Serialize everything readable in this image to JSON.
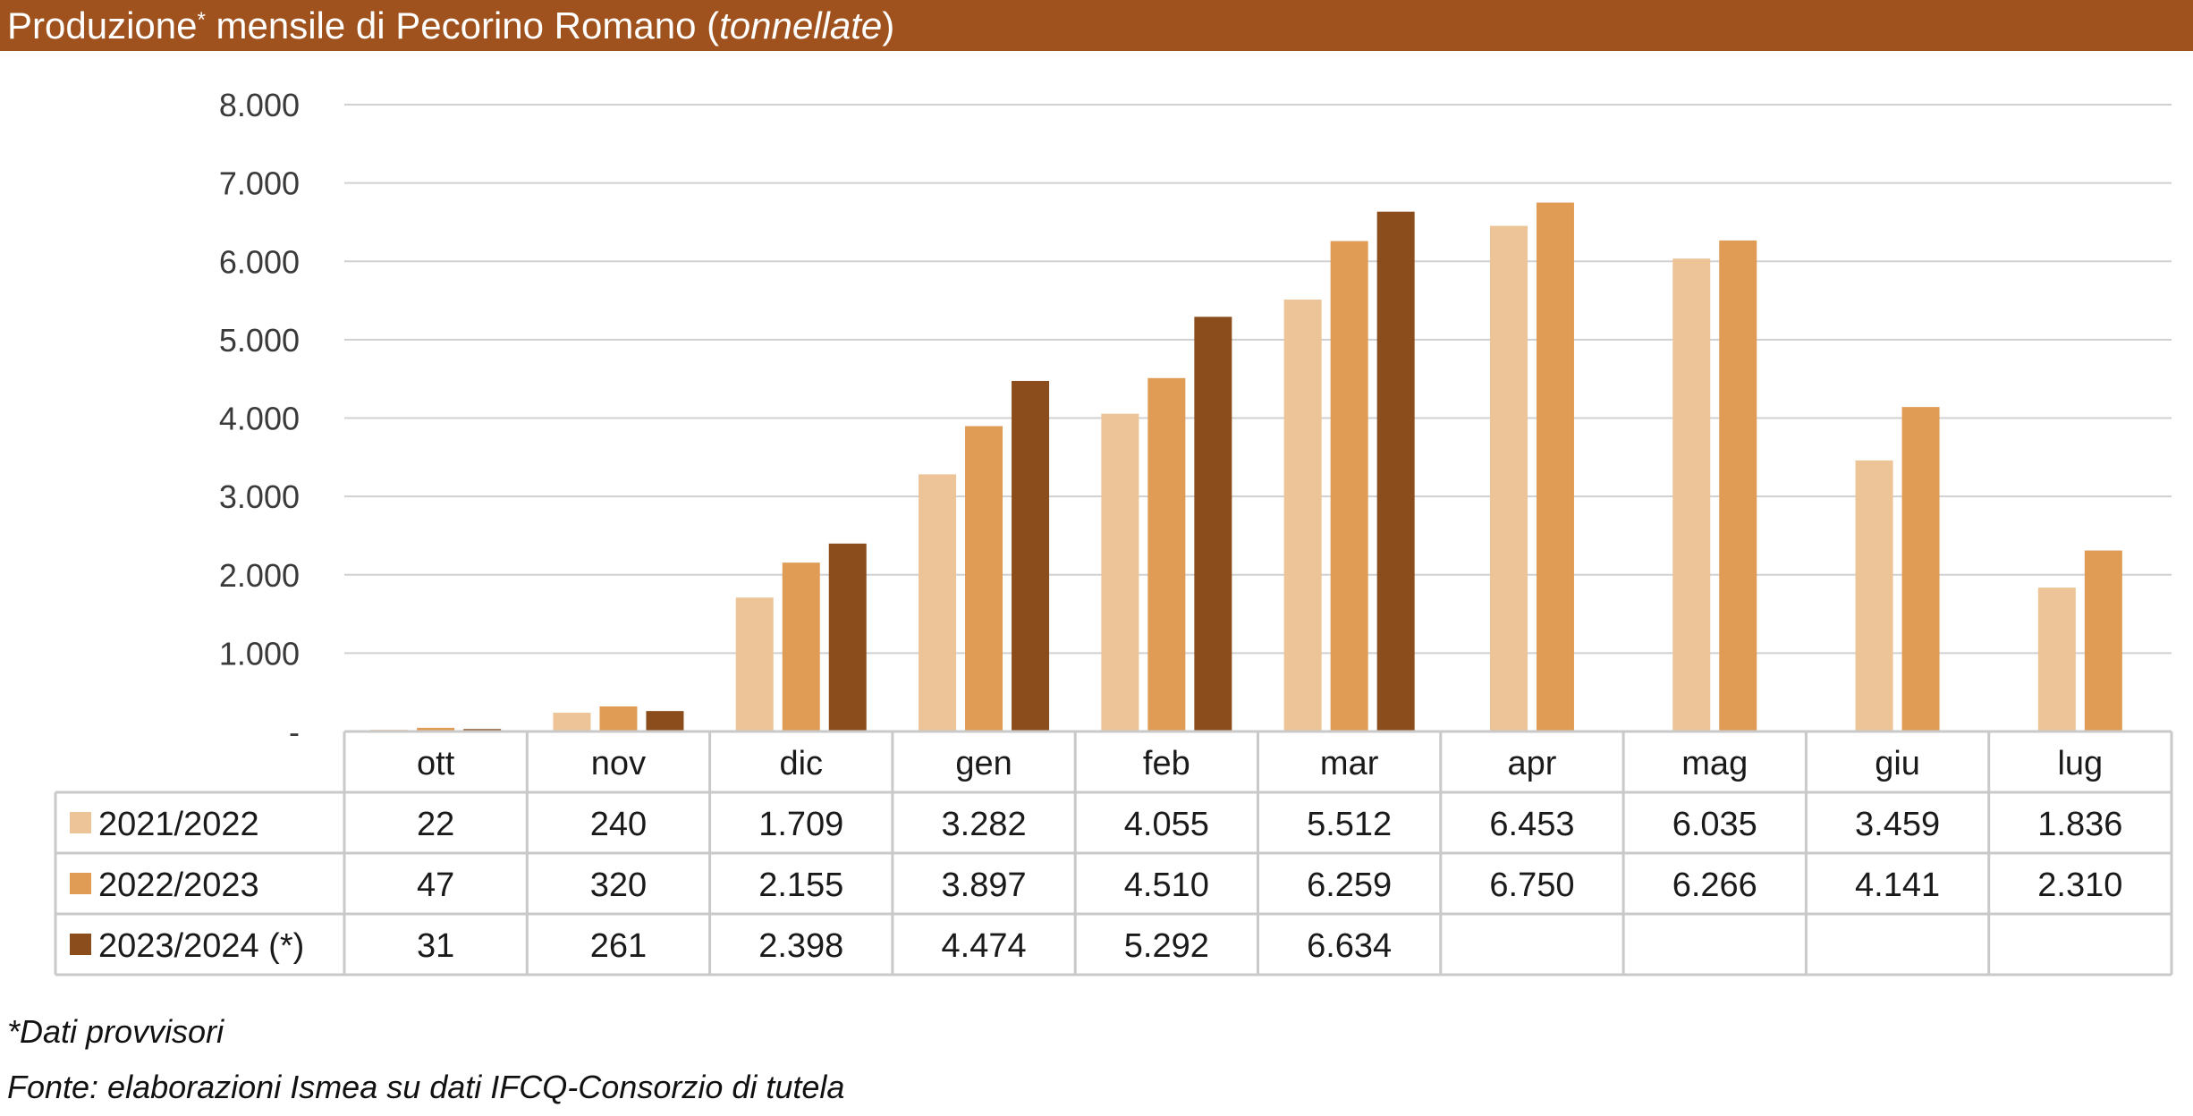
{
  "title": {
    "main": "Produzione",
    "mark": "*",
    "rest": " mensile di Pecorino Romano (",
    "unit": "tonnellate",
    "close": ")"
  },
  "footnote": "*Dati provvisori",
  "source": "Fonte: elaborazioni Ismea su dati IFCQ-Consorzio di tutela",
  "chart_data": {
    "type": "bar",
    "categories": [
      "ott",
      "nov",
      "dic",
      "gen",
      "feb",
      "mar",
      "apr",
      "mag",
      "giu",
      "lug"
    ],
    "ylim": [
      0,
      8000
    ],
    "yticks": [
      0,
      1000,
      2000,
      3000,
      4000,
      5000,
      6000,
      7000,
      8000
    ],
    "ytick_labels": [
      "-",
      "1.000",
      "2.000",
      "3.000",
      "4.000",
      "5.000",
      "6.000",
      "7.000",
      "8.000"
    ],
    "grid": true,
    "legend": "data-table-left",
    "series": [
      {
        "name": "2021/2022",
        "color": "#edc498",
        "values": [
          22,
          240,
          1709,
          3282,
          4055,
          5512,
          6453,
          6035,
          3459,
          1836
        ],
        "labels": [
          "22",
          "240",
          "1.709",
          "3.282",
          "4.055",
          "5.512",
          "6.453",
          "6.035",
          "3.459",
          "1.836"
        ]
      },
      {
        "name": "2022/2023",
        "color": "#e09b54",
        "values": [
          47,
          320,
          2155,
          3897,
          4510,
          6259,
          6750,
          6266,
          4141,
          2310
        ],
        "labels": [
          "47",
          "320",
          "2.155",
          "3.897",
          "4.510",
          "6.259",
          "6.750",
          "6.266",
          "4.141",
          "2.310"
        ]
      },
      {
        "name": "2023/2024 (*)",
        "color": "#8b4d1c",
        "values": [
          31,
          261,
          2398,
          4474,
          5292,
          6634,
          null,
          null,
          null,
          null
        ],
        "labels": [
          "31",
          "261",
          "2.398",
          "4.474",
          "5.292",
          "6.634",
          "",
          "",
          "",
          ""
        ]
      }
    ]
  }
}
